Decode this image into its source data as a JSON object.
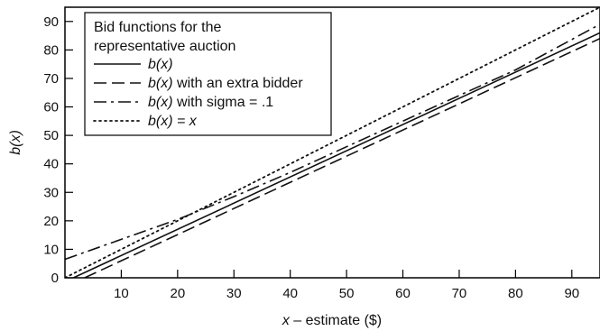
{
  "chart_data": {
    "type": "line",
    "title": "",
    "xlabel_italic": "x",
    "xlabel_rest": " – estimate ($)",
    "ylabel": "b(x)",
    "xlim": [
      0,
      95
    ],
    "ylim": [
      0,
      95
    ],
    "x_ticks": [
      10,
      20,
      30,
      40,
      50,
      60,
      70,
      80,
      90
    ],
    "y_ticks": [
      0,
      10,
      20,
      30,
      40,
      50,
      60,
      70,
      80,
      90
    ],
    "grid": false,
    "legend": {
      "position": "top-left",
      "title_line1": "Bid functions for the",
      "title_line2": "representative auction"
    },
    "series": [
      {
        "name_italic": "b(x)",
        "name_rest": "",
        "style": "solid",
        "x": [
          1.5,
          95
        ],
        "y": [
          0,
          86
        ]
      },
      {
        "name_italic": "b(x)",
        "name_rest": " with an extra bidder",
        "style": "dashed",
        "x": [
          3.5,
          95
        ],
        "y": [
          0,
          84
        ]
      },
      {
        "name_italic": "b(x)",
        "name_rest": " with sigma = .1",
        "style": "dashdot",
        "x": [
          0,
          10,
          20,
          30,
          40,
          50,
          60,
          70,
          80,
          95
        ],
        "y": [
          6.5,
          13.5,
          20.5,
          28.5,
          37,
          46,
          55,
          64,
          73,
          89
        ]
      },
      {
        "name_italic": "b(x) = x",
        "name_rest": "",
        "style": "dotted",
        "x": [
          0,
          95
        ],
        "y": [
          0,
          95
        ]
      }
    ]
  }
}
